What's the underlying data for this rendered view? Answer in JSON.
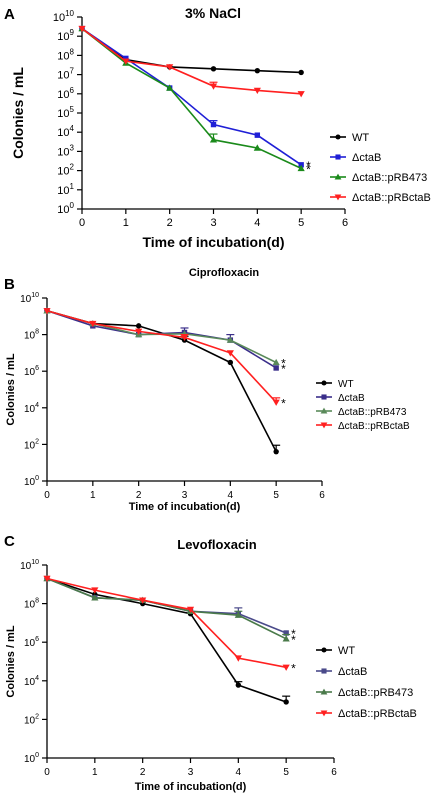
{
  "figure": {
    "panels": [
      {
        "letter": "A"
      },
      {
        "letter": "B"
      },
      {
        "letter": "C"
      }
    ]
  },
  "chart_data": [
    {
      "type": "line",
      "title": "3% NaCl",
      "xlabel": "Time of incubation(d)",
      "ylabel": "Colonies / mL",
      "yscale": "log",
      "xlim": [
        0,
        6
      ],
      "ylim_exponents": [
        0,
        10
      ],
      "x_ticks": [
        "0",
        "1",
        "2",
        "3",
        "4",
        "5",
        "6"
      ],
      "y_tick_base": "10",
      "y_tick_exponents": [
        "0",
        "1",
        "2",
        "3",
        "4",
        "5",
        "6",
        "7",
        "8",
        "9",
        "10"
      ],
      "x": [
        0,
        1,
        2,
        3,
        4,
        5
      ],
      "series": [
        {
          "name": "WT",
          "color": "#000000",
          "marker": "circle",
          "values": [
            2500000000.0,
            60000000.0,
            25000000.0,
            20000000.0,
            16000000.0,
            13000000.0
          ],
          "errors": [
            null,
            null,
            null,
            null,
            null,
            null
          ],
          "annotation": ""
        },
        {
          "name": "ΔctaB",
          "color": "#1f1fd6",
          "marker": "square",
          "values": [
            2500000000.0,
            70000000.0,
            2000000.0,
            25000.0,
            7000.0,
            200
          ],
          "errors": [
            null,
            null,
            null,
            15000.0,
            null,
            null
          ],
          "annotation": "*"
        },
        {
          "name": "ΔctaB::pRB473",
          "color": "#1a8a1a",
          "marker": "triangle-up",
          "values": [
            2500000000.0,
            40000000.0,
            2000000.0,
            4000.0,
            1500.0,
            130
          ],
          "errors": [
            null,
            null,
            null,
            4000.0,
            null,
            null
          ],
          "annotation": "*"
        },
        {
          "name": "ΔctaB::pRBctaB",
          "color": "#ff2020",
          "marker": "triangle-down",
          "values": [
            2500000000.0,
            50000000.0,
            25000000.0,
            2500000.0,
            1500000.0,
            1000000.0
          ],
          "errors": [
            null,
            null,
            null,
            1500000.0,
            null,
            null
          ],
          "annotation": ""
        }
      ]
    },
    {
      "type": "line",
      "title": "Ciprofloxacin",
      "xlabel": "Time of incubation(d)",
      "ylabel": "Colonies / mL",
      "yscale": "log",
      "xlim": [
        0,
        6
      ],
      "ylim_exponents": [
        0,
        10
      ],
      "x_ticks": [
        "0",
        "1",
        "2",
        "3",
        "4",
        "5",
        "6"
      ],
      "y_tick_base": "10",
      "y_tick_exponents": [
        "0",
        "2",
        "4",
        "6",
        "8",
        "10"
      ],
      "x": [
        0,
        1,
        2,
        3,
        4,
        5
      ],
      "series": [
        {
          "name": "WT",
          "color": "#000000",
          "marker": "circle",
          "values": [
            2000000000.0,
            400000000.0,
            300000000.0,
            50000000.0,
            3000000.0,
            40
          ],
          "errors": [
            null,
            null,
            null,
            30000000.0,
            null,
            50
          ],
          "annotation": ""
        },
        {
          "name": "ΔctaB",
          "color": "#3a2e8a",
          "marker": "square",
          "values": [
            2000000000.0,
            300000000.0,
            100000000.0,
            130000000.0,
            50000000.0,
            1500000.0
          ],
          "errors": [
            null,
            null,
            null,
            100000000.0,
            50000000.0,
            null
          ],
          "annotation": "*"
        },
        {
          "name": "ΔctaB::pRB473",
          "color": "#5a8a5a",
          "marker": "triangle-up",
          "values": [
            2000000000.0,
            400000000.0,
            100000000.0,
            110000000.0,
            50000000.0,
            3000000.0
          ],
          "errors": [
            null,
            null,
            null,
            null,
            null,
            null
          ],
          "annotation": "*"
        },
        {
          "name": "ΔctaB::pRBctaB",
          "color": "#ff2020",
          "marker": "triangle-down",
          "values": [
            2000000000.0,
            400000000.0,
            150000000.0,
            70000000.0,
            10000000.0,
            20000.0
          ],
          "errors": [
            null,
            null,
            null,
            30000000.0,
            null,
            15000.0
          ],
          "annotation": "*"
        }
      ]
    },
    {
      "type": "line",
      "title": "Levofloxacin",
      "xlabel": "Time of incubation(d)",
      "ylabel": "Colonies / mL",
      "yscale": "log",
      "xlim": [
        0,
        6
      ],
      "ylim_exponents": [
        0,
        10
      ],
      "x_ticks": [
        "0",
        "1",
        "2",
        "3",
        "4",
        "5",
        "6"
      ],
      "y_tick_base": "10",
      "y_tick_exponents": [
        "0",
        "2",
        "4",
        "6",
        "8",
        "10"
      ],
      "x": [
        0,
        1,
        2,
        3,
        4,
        5
      ],
      "series": [
        {
          "name": "WT",
          "color": "#000000",
          "marker": "circle",
          "values": [
            2000000000.0,
            300000000.0,
            100000000.0,
            30000000.0,
            6000.0,
            800
          ],
          "errors": [
            null,
            null,
            null,
            null,
            3000.0,
            800
          ],
          "annotation": ""
        },
        {
          "name": "ΔctaB",
          "color": "#4a4a8a",
          "marker": "square",
          "values": [
            2000000000.0,
            200000000.0,
            150000000.0,
            40000000.0,
            30000000.0,
            3000000.0
          ],
          "errors": [
            null,
            null,
            null,
            null,
            30000000.0,
            null
          ],
          "annotation": "*"
        },
        {
          "name": "ΔctaB::pRB473",
          "color": "#4a7a4a",
          "marker": "triangle-up",
          "values": [
            2000000000.0,
            200000000.0,
            150000000.0,
            40000000.0,
            25000000.0,
            1500000.0
          ],
          "errors": [
            null,
            null,
            null,
            null,
            15000000.0,
            1000000.0
          ],
          "annotation": "*"
        },
        {
          "name": "ΔctaB::pRBctaB",
          "color": "#ff2020",
          "marker": "triangle-down",
          "values": [
            2000000000.0,
            500000000.0,
            150000000.0,
            50000000.0,
            150000.0,
            50000.0
          ],
          "errors": [
            null,
            null,
            null,
            null,
            null,
            null
          ],
          "annotation": "*"
        }
      ]
    }
  ]
}
